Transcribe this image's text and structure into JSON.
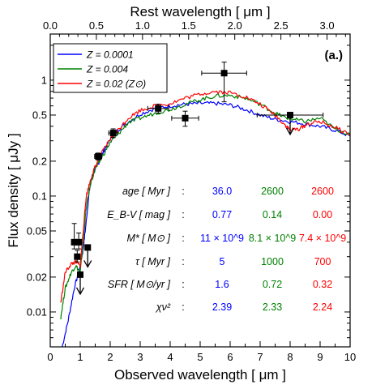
{
  "chart_data": {
    "type": "scatter",
    "panel_label": "(a.)",
    "xlabel": "Observed wavelength [ μm ]",
    "top_xlabel": "Rest wavelength [ μm ]",
    "ylabel": "Flux density [ μJy ]",
    "xlim": [
      0,
      10
    ],
    "ylim": [
      0.005,
      2.5
    ],
    "y_scale": "log",
    "top_xlim": [
      0.0,
      3.25
    ],
    "x_ticks": [
      0,
      1,
      2,
      3,
      4,
      5,
      6,
      7,
      8,
      9,
      10
    ],
    "x_tick_labels": [
      "0",
      "1",
      "2",
      "3",
      "4",
      "5",
      "6",
      "7",
      "8",
      "9",
      "10"
    ],
    "top_ticks": [
      0.0,
      0.5,
      1.0,
      1.5,
      2.0,
      2.5,
      3.0
    ],
    "top_tick_labels": [
      "0.0",
      "0.5",
      "1.0",
      "1.5",
      "2.0",
      "2.5",
      "3.0"
    ],
    "y_ticks": [
      0.01,
      0.02,
      0.05,
      0.1,
      0.2,
      0.5,
      1
    ],
    "y_tick_labels": [
      "0.01",
      "0.02",
      "0.05",
      "0.1",
      "0.2",
      "0.5",
      "1"
    ],
    "legend": {
      "position": "top-left",
      "entries": [
        {
          "label": "Z = 0.0001",
          "color": "#0000ff"
        },
        {
          "label": "Z = 0.004",
          "color": "#008000"
        },
        {
          "label": "Z = 0.02 (Z⊙)",
          "color": "#ff0000"
        }
      ]
    },
    "series": [
      {
        "name": "Z = 0.0001",
        "color": "#0000ff",
        "x": [
          0.4,
          0.6,
          0.8,
          1.0,
          1.1,
          1.2,
          1.3,
          1.4,
          1.6,
          1.8,
          2.0,
          2.2,
          2.5,
          3.0,
          3.5,
          4.0,
          4.5,
          5.0,
          5.5,
          6.0,
          6.5,
          7.0,
          7.5,
          8.0,
          8.5,
          9.0,
          9.5,
          10.0
        ],
        "y": [
          0.005,
          0.0085,
          0.016,
          0.025,
          0.035,
          0.06,
          0.11,
          0.15,
          0.19,
          0.25,
          0.31,
          0.36,
          0.42,
          0.51,
          0.57,
          0.6,
          0.62,
          0.63,
          0.63,
          0.61,
          0.56,
          0.5,
          0.46,
          0.44,
          0.42,
          0.4,
          0.37,
          0.33
        ]
      },
      {
        "name": "Z = 0.004",
        "color": "#008000",
        "x": [
          0.35,
          0.5,
          0.7,
          0.85,
          1.0,
          1.1,
          1.2,
          1.35,
          1.5,
          1.7,
          2.0,
          2.3,
          2.6,
          3.0,
          3.5,
          4.0,
          4.5,
          5.0,
          5.5,
          6.0,
          6.5,
          7.0,
          7.5,
          7.8,
          8.1,
          8.5,
          9.0,
          9.5,
          10.0
        ],
        "y": [
          0.009,
          0.016,
          0.022,
          0.025,
          0.022,
          0.04,
          0.08,
          0.13,
          0.17,
          0.21,
          0.29,
          0.35,
          0.43,
          0.47,
          0.52,
          0.56,
          0.62,
          0.68,
          0.73,
          0.74,
          0.7,
          0.62,
          0.52,
          0.48,
          0.46,
          0.44,
          0.47,
          0.38,
          0.34
        ]
      },
      {
        "name": "Z = 0.02 (Z⊙)",
        "color": "#ff0000",
        "x": [
          0.35,
          0.5,
          0.7,
          0.85,
          1.0,
          1.1,
          1.2,
          1.35,
          1.5,
          1.7,
          2.0,
          2.3,
          2.6,
          3.0,
          3.5,
          4.0,
          4.5,
          5.0,
          5.5,
          6.0,
          6.5,
          7.0,
          7.5,
          7.8,
          8.0,
          8.3,
          8.6,
          9.0,
          9.5,
          10.0
        ],
        "y": [
          0.012,
          0.022,
          0.026,
          0.027,
          0.025,
          0.05,
          0.1,
          0.14,
          0.18,
          0.23,
          0.31,
          0.38,
          0.47,
          0.55,
          0.6,
          0.63,
          0.7,
          0.76,
          0.8,
          0.78,
          0.72,
          0.62,
          0.5,
          0.42,
          0.37,
          0.38,
          0.42,
          0.44,
          0.39,
          0.34
        ]
      }
    ],
    "photometry": [
      {
        "x": 0.8,
        "y": 0.04,
        "y_err_low": 0.005,
        "y_err_high": 0.018,
        "x_err": 0.08,
        "upper_limit": false
      },
      {
        "x": 0.95,
        "y": 0.04,
        "y_err_low": 0.005,
        "y_err_high": 0.008,
        "x_err": 0.05,
        "upper_limit": false
      },
      {
        "x": 0.9,
        "y": 0.03,
        "y_err_low": 0.003,
        "y_err_high": 0.004,
        "x_err": 0.05,
        "upper_limit": false
      },
      {
        "x": 1.0,
        "y": 0.021,
        "upper_limit": true
      },
      {
        "x": 1.25,
        "y": 0.036,
        "upper_limit": true
      },
      {
        "x": 1.6,
        "y": 0.22,
        "y_err_low": 0.015,
        "y_err_high": 0.015,
        "x_err": 0.12,
        "upper_limit": false
      },
      {
        "x": 2.1,
        "y": 0.35,
        "y_err_low": 0.03,
        "y_err_high": 0.03,
        "x_err": 0.15,
        "upper_limit": false
      },
      {
        "x": 3.6,
        "y": 0.57,
        "y_err_low": 0.05,
        "y_err_high": 0.05,
        "x_err": 0.35,
        "upper_limit": false
      },
      {
        "x": 4.5,
        "y": 0.47,
        "y_err_low": 0.07,
        "y_err_high": 0.07,
        "x_err": 0.45,
        "upper_limit": false
      },
      {
        "x": 5.8,
        "y": 1.15,
        "y_err_low": 0.5,
        "y_err_high": 0.28,
        "x_err": 0.75,
        "upper_limit": false
      },
      {
        "x": 8.0,
        "y": 0.5,
        "x_err": 1.1,
        "upper_limit": true
      }
    ],
    "annotations": {
      "rows": [
        {
          "label": "age [ Myr ]",
          "values": [
            "36.0",
            "2600",
            "2600"
          ]
        },
        {
          "label": "E_B-V [ mag ]",
          "values": [
            "0.77",
            "0.14",
            "0.00"
          ]
        },
        {
          "label": "M* [ M⊙ ]",
          "values": [
            "11 × 10^9",
            "8.1 × 10^9",
            "7.4 × 10^9"
          ]
        },
        {
          "label": "τ [ Myr ]",
          "values": [
            "5",
            "1000",
            "700"
          ]
        },
        {
          "label": "SFR [ M⊙/yr ]",
          "values": [
            "1.6",
            "0.72",
            "0.32"
          ]
        },
        {
          "label": "χν²",
          "values": [
            "2.39",
            "2.33",
            "2.24"
          ]
        }
      ],
      "separator": ":",
      "column_colors": [
        "#0000ff",
        "#008000",
        "#ff0000"
      ]
    }
  }
}
